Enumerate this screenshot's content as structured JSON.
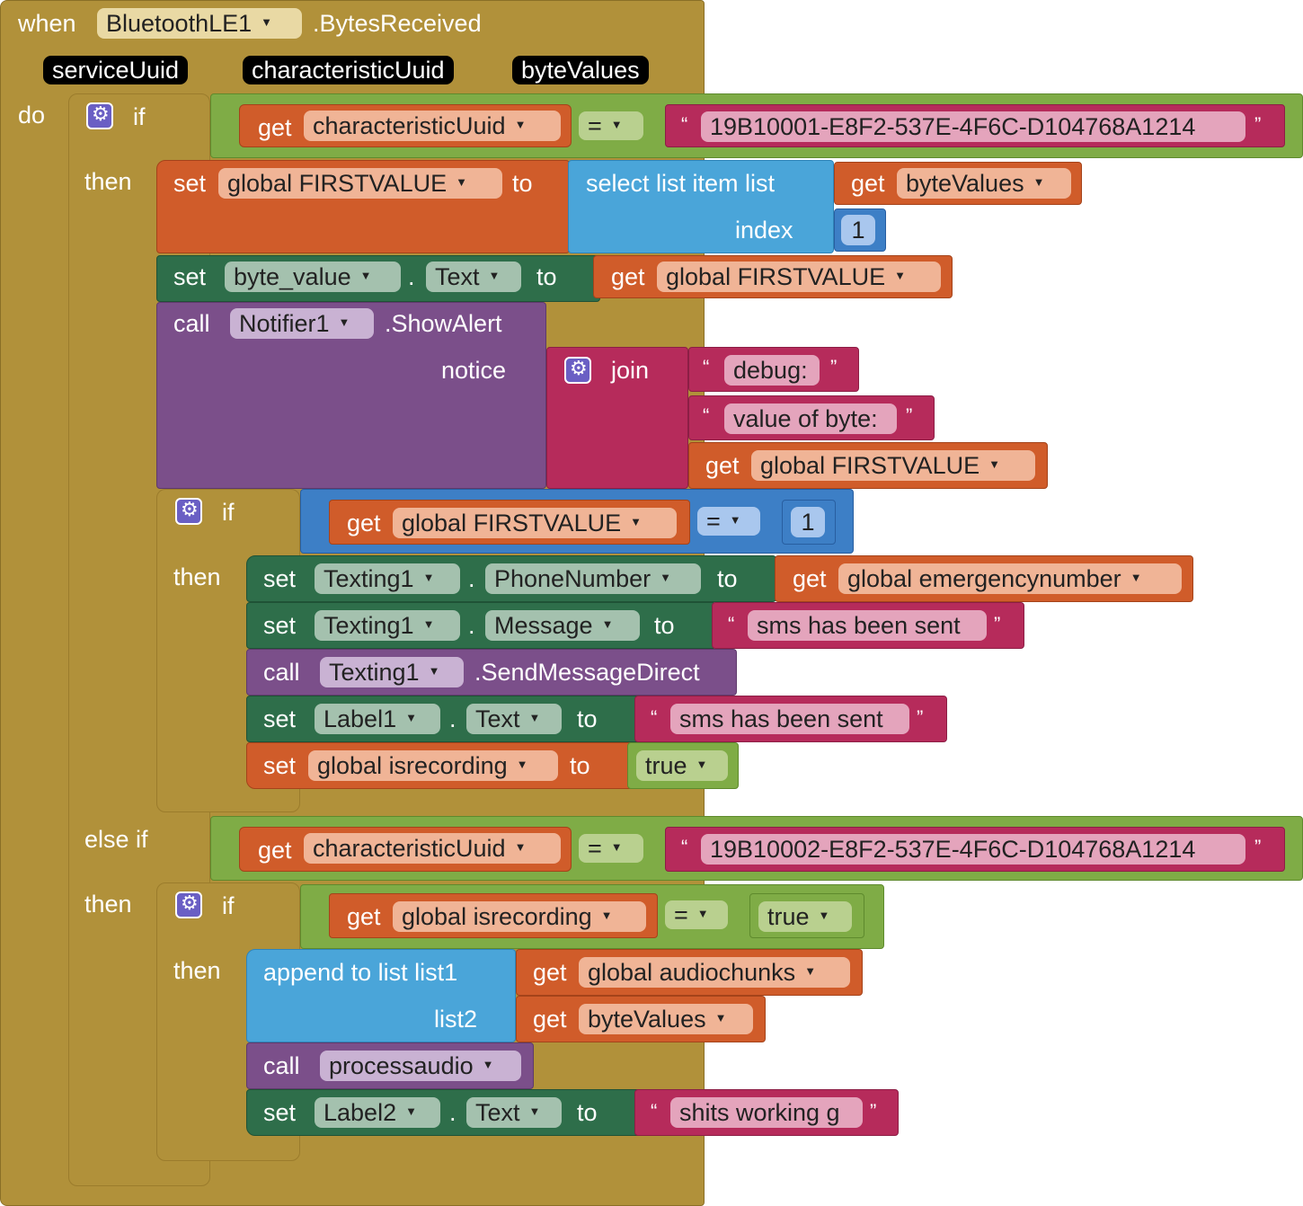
{
  "event": {
    "when": "when",
    "component": "BluetoothLE1",
    "event_name": ".BytesReceived",
    "params": [
      "serviceUuid",
      "characteristicUuid",
      "byteValues"
    ],
    "do": "do"
  },
  "kw": {
    "if": "if",
    "then": "then",
    "else_if": "else if",
    "set": "set",
    "call": "call",
    "get": "get",
    "to": "to",
    "dot": ".",
    "eq": "=",
    "open_quote": "“",
    "close_quote": "”"
  },
  "if1": {
    "cond_var": "characteristicUuid",
    "cond_str": "19B10001-E8F2-537E-4F6C-D104768A1214",
    "set_var": "global FIRSTVALUE",
    "select_label": "select list item  list",
    "select_index": "index",
    "select_list": "byteValues",
    "select_index_val": "1",
    "set_comp": "byte_value",
    "set_prop": "Text",
    "get_var": "global FIRSTVALUE",
    "notifier": "Notifier1",
    "notifier_method": ".ShowAlert",
    "notice": "notice",
    "join": "join",
    "join_s1": "debug:",
    "join_s2": "value of byte:",
    "join_get": "global FIRSTVALUE"
  },
  "if2": {
    "cond_get": "global FIRSTVALUE",
    "cond_num": "1",
    "s1_comp": "Texting1",
    "s1_prop": "PhoneNumber",
    "s1_get": "global emergencynumber",
    "s2_comp": "Texting1",
    "s2_prop": "Message",
    "s2_str": "sms has been sent",
    "call_comp": "Texting1",
    "call_method": ".SendMessageDirect",
    "s3_comp": "Label1",
    "s3_prop": "Text",
    "s3_str": "sms has been sent",
    "s4_var": "global isrecording",
    "s4_val": "true"
  },
  "elseif": {
    "cond_var": "characteristicUuid",
    "cond_str": "19B10002-E8F2-537E-4F6C-D104768A1214",
    "inner_cond_get": "global isrecording",
    "inner_cond_val": "true",
    "append_label": "append to list  list1",
    "append_list2": "list2",
    "append_get1": "global audiochunks",
    "append_get2": "byteValues",
    "call_proc": "processaudio",
    "s_comp": "Label2",
    "s_prop": "Text",
    "s_str": "shits working g"
  }
}
